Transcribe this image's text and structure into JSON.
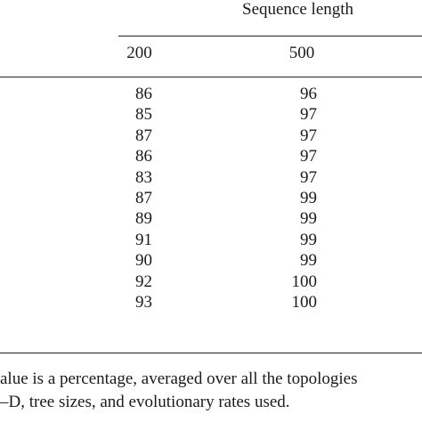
{
  "table": {
    "group_header": "Sequence length",
    "columns": [
      "200",
      "500"
    ],
    "rows": [
      {
        "v200": "86",
        "v500": "96"
      },
      {
        "v200": "85",
        "v500": "97"
      },
      {
        "v200": "87",
        "v500": "97"
      },
      {
        "v200": "86",
        "v500": "97"
      },
      {
        "v200": "83",
        "v500": "97"
      },
      {
        "v200": "87",
        "v500": "99"
      },
      {
        "v200": "89",
        "v500": "99"
      },
      {
        "v200": "91",
        "v500": "99"
      },
      {
        "v200": "90",
        "v500": "99"
      },
      {
        "v200": "92",
        "v500": "100"
      },
      {
        "v200": "93",
        "v500": "100"
      }
    ]
  },
  "footnote": {
    "line1": "alue is a percentage, averaged over all the topologies",
    "line2": "–D, tree sizes, and evolutionary rates used."
  }
}
